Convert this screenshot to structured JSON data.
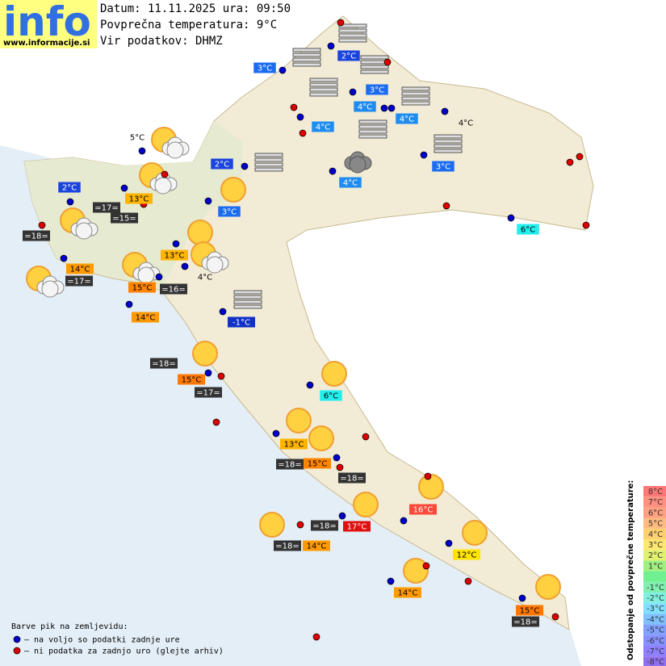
{
  "header": {
    "logo": "info",
    "url": "www.informacije.si",
    "date": "Datum: 11.11.2025 ura: 09:50",
    "avg_temp": "Povprečna temperatura: 9°C",
    "source": "Vir podatkov: DHMZ"
  },
  "stations": [
    {
      "label": "2°C",
      "color": "#1a44dd"
    },
    {
      "label": "3°C",
      "color": "#1c6cf0"
    },
    {
      "label": "3°C",
      "color": "#1c6cf0"
    },
    {
      "label": "4°C",
      "color": "#1e8cf0"
    },
    {
      "label": "4°C",
      "color": "#1e8cf0"
    },
    {
      "label": "4°C",
      "color": "#1e8cf0"
    },
    {
      "label": "4°C",
      "color": null
    },
    {
      "label": "5°C",
      "color": null
    },
    {
      "label": "2°C",
      "color": "#1a44dd"
    },
    {
      "label": "3°C",
      "color": "#1c6cf0"
    },
    {
      "label": "4°C",
      "color": "#1e8cf0"
    },
    {
      "label": "2°C",
      "color": "#1a44dd"
    },
    {
      "label": "13°C",
      "color": "#ffb400"
    },
    {
      "label": "=17=",
      "color": "#333333"
    },
    {
      "label": "=15=",
      "color": "#333333"
    },
    {
      "label": "3°C",
      "color": "#1c6cf0"
    },
    {
      "label": "6°C",
      "color": "#22eeee"
    },
    {
      "label": "=18=",
      "color": "#333333"
    },
    {
      "label": "13°C",
      "color": "#ffb400"
    },
    {
      "label": "14°C",
      "color": "#ff9a00"
    },
    {
      "label": "=17=",
      "color": "#333333"
    },
    {
      "label": "4°C",
      "color": null
    },
    {
      "label": "15°C",
      "color": "#ff8400"
    },
    {
      "label": "=16=",
      "color": "#333333"
    },
    {
      "label": "14°C",
      "color": "#ff9a00"
    },
    {
      "label": "-1°C",
      "color": "#1030c8"
    },
    {
      "label": "=18=",
      "color": "#333333"
    },
    {
      "label": "15°C",
      "color": "#ff7800"
    },
    {
      "label": "=17=",
      "color": "#333333"
    },
    {
      "label": "6°C",
      "color": "#22eeee"
    },
    {
      "label": "13°C",
      "color": "#ffb400"
    },
    {
      "label": "=18=",
      "color": "#333333"
    },
    {
      "label": "15°C",
      "color": "#ff8400"
    },
    {
      "label": "=18=",
      "color": "#333333"
    },
    {
      "label": "16°C",
      "color": "#ff4838"
    },
    {
      "label": "=18=",
      "color": "#333333"
    },
    {
      "label": "17°C",
      "color": "#e01010"
    },
    {
      "label": "=18=",
      "color": "#333333"
    },
    {
      "label": "14°C",
      "color": "#ff9a00"
    },
    {
      "label": "12°C",
      "color": "#ffe400"
    },
    {
      "label": "14°C",
      "color": "#ff9a00"
    },
    {
      "label": "15°C",
      "color": "#ff7800"
    },
    {
      "label": "=18=",
      "color": "#333333"
    }
  ],
  "legend": {
    "title": "Barve pik na zemljevidu:",
    "items": [
      {
        "label": "– na voljo so podatki zadnje ure",
        "color": "#0000cc"
      },
      {
        "label": "– ni podatka za zadnjo uro (glejte arhiv)",
        "color": "#dd0000"
      }
    ]
  },
  "scale": {
    "title": "Odstopanje od povprečne temperature:",
    "steps": [
      {
        "label": "8°C",
        "color": "#ff7777"
      },
      {
        "label": "7°C",
        "color": "#ff8f80"
      },
      {
        "label": "6°C",
        "color": "#ffa080"
      },
      {
        "label": "5°C",
        "color": "#ffbb80"
      },
      {
        "label": "4°C",
        "color": "#ffd070"
      },
      {
        "label": "3°C",
        "color": "#ffe870"
      },
      {
        "label": "2°C",
        "color": "#e0f070"
      },
      {
        "label": "1°C",
        "color": "#a0f080"
      },
      {
        "label": null,
        "color": "#70f090"
      },
      {
        "label": "-1°C",
        "color": "#80f0b0"
      },
      {
        "label": "-2°C",
        "color": "#80f0e0"
      },
      {
        "label": "-3°C",
        "color": "#80e0ff"
      },
      {
        "label": "-4°C",
        "color": "#80c0ff"
      },
      {
        "label": "-5°C",
        "color": "#80a0ff"
      },
      {
        "label": "-6°C",
        "color": "#8890ff"
      },
      {
        "label": "-7°C",
        "color": "#9080ff"
      },
      {
        "label": "-8°C",
        "color": "#9070f0"
      }
    ]
  }
}
